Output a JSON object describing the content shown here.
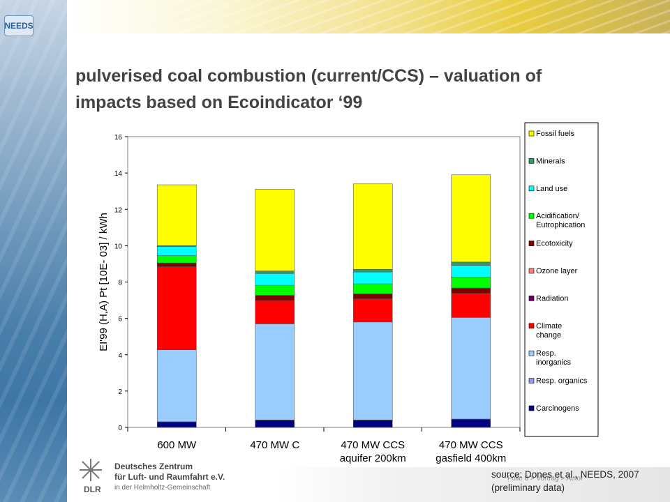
{
  "logo": {
    "text": "NEEDS"
  },
  "title": {
    "line1": "pulverised coal combustion (current/CCS) – valuation of",
    "line2": "impacts based on Ecoindicator ‘99"
  },
  "chart_data": {
    "type": "bar",
    "stacked": true,
    "ylabel": "EI'99 (H,A) Pt [10E- 03] / kWh",
    "xlabel": "",
    "ylim": [
      0,
      16
    ],
    "yticks": [
      0,
      2,
      4,
      6,
      8,
      10,
      12,
      14,
      16
    ],
    "grid": false,
    "legend_position": "right",
    "categories": [
      "600 MW",
      "470 MW C",
      "470 MW CCS\naquifer 200km",
      "470 MW CCS\ngasfield 400km"
    ],
    "series": [
      {
        "name": "Carcinogens",
        "color": "#000080",
        "values": [
          0.3,
          0.4,
          0.4,
          0.45
        ]
      },
      {
        "name": "Resp. organics",
        "color": "#9999ff",
        "values": [
          0.01,
          0.01,
          0.01,
          0.01
        ]
      },
      {
        "name": "Resp.\ninorganics",
        "color": "#99ccff",
        "values": [
          3.96,
          5.29,
          5.39,
          5.59
        ]
      },
      {
        "name": "Climate\nchange",
        "color": "#ff0000",
        "values": [
          4.55,
          1.25,
          1.25,
          1.3
        ]
      },
      {
        "name": "Radiation",
        "color": "#660066",
        "values": [
          0.01,
          0.01,
          0.01,
          0.01
        ]
      },
      {
        "name": "Ozone layer",
        "color": "#ff8080",
        "values": [
          0.01,
          0.01,
          0.01,
          0.01
        ]
      },
      {
        "name": "Ecotoxicity",
        "color": "#800000",
        "values": [
          0.21,
          0.3,
          0.28,
          0.3
        ]
      },
      {
        "name": "Acidification/\nEutrophication",
        "color": "#00ff00",
        "values": [
          0.4,
          0.55,
          0.55,
          0.6
        ]
      },
      {
        "name": "Land use",
        "color": "#00ffff",
        "values": [
          0.5,
          0.65,
          0.65,
          0.65
        ]
      },
      {
        "name": "Minerals",
        "color": "#339966",
        "values": [
          0.05,
          0.14,
          0.15,
          0.18
        ]
      },
      {
        "name": "Fossil fuels",
        "color": "#ffff00",
        "values": [
          3.35,
          4.5,
          4.7,
          4.8
        ]
      }
    ],
    "legend_order": [
      "Fossil fuels",
      "Minerals",
      "Land use",
      "Acidification/\nEutrophication",
      "Ecotoxicity",
      "Ozone layer",
      "Radiation",
      "Climate\nchange",
      "Resp.\ninorganics",
      "Resp. organics",
      "Carcinogens"
    ]
  },
  "footer": {
    "source_line1": "source: Dones et al., NEEDS, 2007",
    "source_line2": "(preliminary data)",
    "footnote": "Folie 8 > Vortrag > Autor",
    "dlr_name_line1": "Deutsches Zentrum",
    "dlr_name_line2": "für Luft- und Raumfahrt e.V.",
    "dlr_name_line3": "in der Helmholtz-Gemeinschaft",
    "dlr_abbrev": "DLR"
  }
}
